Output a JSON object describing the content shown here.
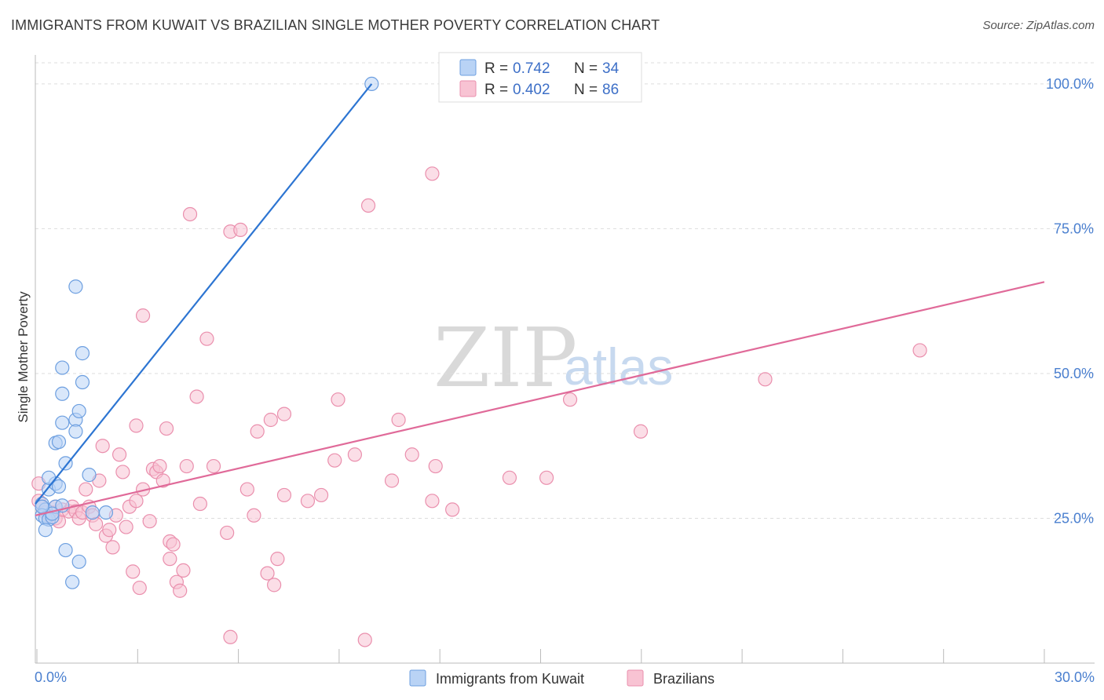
{
  "title": "IMMIGRANTS FROM KUWAIT VS BRAZILIAN SINGLE MOTHER POVERTY CORRELATION CHART",
  "source": "Source: ZipAtlas.com",
  "watermark": {
    "zip": "ZIP",
    "atlas": "atlas"
  },
  "colors": {
    "blue_fill": "#b9d3f5",
    "blue_stroke": "#6d9fe0",
    "blue_line": "#2d75d2",
    "pink_fill": "#f8c3d3",
    "pink_stroke": "#ea8fad",
    "pink_line": "#e06a99",
    "tick_text": "#4a7fcf",
    "grid": "#dddddd"
  },
  "legend": {
    "rows": [
      {
        "r_label": "R =",
        "r_value": "0.742",
        "n_label": "N =",
        "n_value": "34"
      },
      {
        "r_label": "R =",
        "r_value": "0.402",
        "n_label": "N =",
        "n_value": "86"
      }
    ]
  },
  "chart_data": {
    "type": "scatter",
    "title": "IMMIGRANTS FROM KUWAIT VS BRAZILIAN SINGLE MOTHER POVERTY CORRELATION CHART",
    "xlabel": "",
    "ylabel": "Single Mother Poverty",
    "xlim": [
      0,
      30
    ],
    "ylim": [
      0,
      105
    ],
    "x_tick_labels": [
      "0.0%",
      "30.0%"
    ],
    "y_ticks": [
      25,
      50,
      75,
      100
    ],
    "y_tick_labels": [
      "25.0%",
      "50.0%",
      "75.0%",
      "100.0%"
    ],
    "grid": true,
    "series": [
      {
        "name": "Immigrants from Kuwait",
        "R": 0.742,
        "N": 34,
        "trend": {
          "x0": 0,
          "y0": 27.5,
          "x1": 10.0,
          "y1": 100
        },
        "points": [
          [
            0.2,
            27.5
          ],
          [
            0.3,
            26.5
          ],
          [
            0.2,
            25.5
          ],
          [
            0.3,
            25
          ],
          [
            0.4,
            24.8
          ],
          [
            0.5,
            25.2
          ],
          [
            0.3,
            23
          ],
          [
            0.4,
            30
          ],
          [
            0.6,
            31
          ],
          [
            0.4,
            32
          ],
          [
            0.7,
            30.5
          ],
          [
            0.6,
            27
          ],
          [
            0.8,
            27.2
          ],
          [
            0.5,
            25.8
          ],
          [
            0.9,
            34.5
          ],
          [
            0.6,
            38
          ],
          [
            0.7,
            38.2
          ],
          [
            0.8,
            41.5
          ],
          [
            0.8,
            46.5
          ],
          [
            0.8,
            51
          ],
          [
            1.2,
            42
          ],
          [
            1.3,
            43.5
          ],
          [
            1.2,
            40
          ],
          [
            1.4,
            48.5
          ],
          [
            1.4,
            53.5
          ],
          [
            1.2,
            65
          ],
          [
            1.6,
            32.5
          ],
          [
            1.7,
            26
          ],
          [
            2.1,
            26
          ],
          [
            0.9,
            19.5
          ],
          [
            1.3,
            17.5
          ],
          [
            1.1,
            14
          ],
          [
            0.2,
            27
          ],
          [
            10.0,
            100
          ]
        ]
      },
      {
        "name": "Brazilians",
        "R": 0.402,
        "N": 86,
        "trend": {
          "x0": 0,
          "y0": 25.5,
          "x1": 30,
          "y1": 65.8
        },
        "points": [
          [
            0.1,
            31
          ],
          [
            0.1,
            28
          ],
          [
            0.2,
            27
          ],
          [
            0.3,
            26
          ],
          [
            0.4,
            25.5
          ],
          [
            0.5,
            26
          ],
          [
            0.6,
            25
          ],
          [
            0.6,
            27
          ],
          [
            0.7,
            24.5
          ],
          [
            0.8,
            26.5
          ],
          [
            1.0,
            26.2
          ],
          [
            1.1,
            27
          ],
          [
            1.2,
            26.2
          ],
          [
            1.3,
            25
          ],
          [
            1.4,
            26
          ],
          [
            1.5,
            30
          ],
          [
            1.6,
            27
          ],
          [
            1.7,
            25.5
          ],
          [
            1.8,
            24
          ],
          [
            1.9,
            31.5
          ],
          [
            2.0,
            37.5
          ],
          [
            2.1,
            22
          ],
          [
            2.2,
            23
          ],
          [
            2.3,
            20
          ],
          [
            2.4,
            25.5
          ],
          [
            2.5,
            36
          ],
          [
            2.6,
            33
          ],
          [
            2.7,
            23.5
          ],
          [
            2.8,
            27
          ],
          [
            3.0,
            41
          ],
          [
            2.9,
            15.8
          ],
          [
            3.0,
            28
          ],
          [
            3.1,
            13
          ],
          [
            3.2,
            30
          ],
          [
            3.2,
            60
          ],
          [
            3.4,
            24.5
          ],
          [
            3.5,
            33.5
          ],
          [
            3.6,
            33
          ],
          [
            3.7,
            34
          ],
          [
            3.8,
            31.5
          ],
          [
            3.9,
            40.5
          ],
          [
            4.0,
            21
          ],
          [
            4.0,
            18
          ],
          [
            4.1,
            20.5
          ],
          [
            4.2,
            14
          ],
          [
            4.3,
            12.5
          ],
          [
            4.4,
            16
          ],
          [
            4.5,
            34
          ],
          [
            4.6,
            77.5
          ],
          [
            4.8,
            46
          ],
          [
            4.9,
            27.5
          ],
          [
            5.1,
            56
          ],
          [
            5.3,
            34
          ],
          [
            5.7,
            22.5
          ],
          [
            5.8,
            4.5
          ],
          [
            5.8,
            74.5
          ],
          [
            6.1,
            74.8
          ],
          [
            6.3,
            30
          ],
          [
            6.5,
            25.5
          ],
          [
            6.6,
            40
          ],
          [
            6.9,
            15.5
          ],
          [
            7.1,
            13.5
          ],
          [
            7.0,
            42
          ],
          [
            7.2,
            18
          ],
          [
            7.4,
            43
          ],
          [
            7.4,
            29
          ],
          [
            8.1,
            28
          ],
          [
            8.5,
            29
          ],
          [
            8.9,
            35
          ],
          [
            9.0,
            45.5
          ],
          [
            9.5,
            36
          ],
          [
            9.8,
            4
          ],
          [
            9.9,
            79
          ],
          [
            10.6,
            31.5
          ],
          [
            10.8,
            42
          ],
          [
            11.2,
            36
          ],
          [
            11.8,
            28
          ],
          [
            11.9,
            34
          ],
          [
            12.4,
            26.5
          ],
          [
            11.8,
            84.5
          ],
          [
            14.1,
            32
          ],
          [
            15.2,
            32
          ],
          [
            15.9,
            45.5
          ],
          [
            18.0,
            40
          ],
          [
            21.7,
            49
          ],
          [
            26.3,
            54
          ]
        ]
      }
    ]
  },
  "bottom_legend": [
    "Immigrants from Kuwait",
    "Brazilians"
  ]
}
